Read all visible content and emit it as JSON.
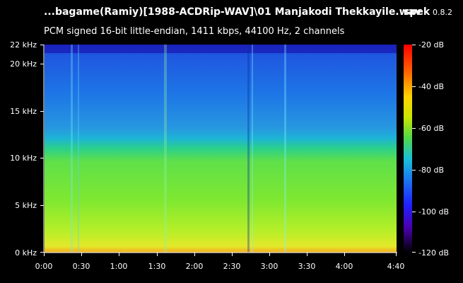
{
  "header": {
    "file_title": "...bagame(Ramiy)[1988-ACDRip-WAV]\\01 Manjakodi Thekkayile.wav",
    "app_name": "spek",
    "app_version": "0.8.2",
    "stream_info": "PCM signed 16-bit little-endian, 1411 kbps, 44100 Hz, 2 channels"
  },
  "frequency_axis": {
    "labels": [
      "22 kHz",
      "20 kHz",
      "15 kHz",
      "10 kHz",
      "5 kHz",
      "0 kHz"
    ]
  },
  "time_axis": {
    "labels": [
      "0:00",
      "0:30",
      "1:00",
      "1:30",
      "2:00",
      "2:30",
      "3:00",
      "3:30",
      "4:00",
      "4:40"
    ]
  },
  "scale": {
    "labels": [
      "-20 dB",
      "-40 dB",
      "-60 dB",
      "-80 dB",
      "-100 dB",
      "-120 dB"
    ]
  },
  "colors": {
    "background": "#000000",
    "scale_top": "#ff0000",
    "scale_bottom": "#000000"
  }
}
